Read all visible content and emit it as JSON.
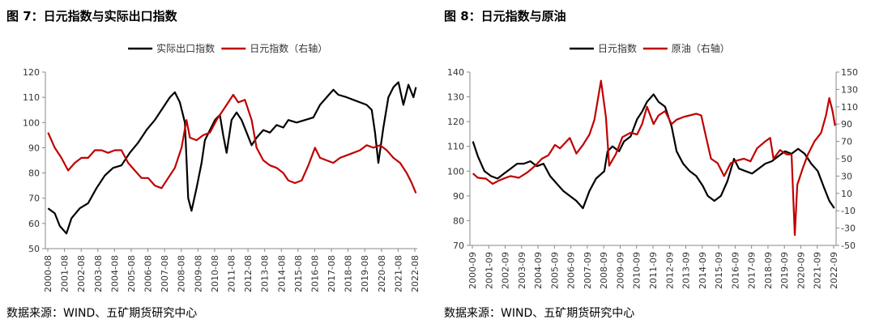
{
  "charts": [
    {
      "title": "图 7：日元指数与实际出口指数",
      "source": "数据来源：WIND、五矿期货研究中心"
    },
    {
      "title": "图 8：日元指数与原油",
      "source": "数据来源：WIND、五矿期货研究中心"
    }
  ],
  "chart_data": [
    {
      "type": "line",
      "title": "图 7：日元指数与实际出口指数",
      "legend_position": "top-center",
      "grid": false,
      "x_ticks": [
        "2000-08",
        "2001-08",
        "2002-08",
        "2003-08",
        "2004-08",
        "2005-08",
        "2006-08",
        "2007-08",
        "2008-08",
        "2009-08",
        "2010-08",
        "2011-08",
        "2012-08",
        "2013-08",
        "2014-08",
        "2015-08",
        "2016-08",
        "2017-08",
        "2018-08",
        "2019-08",
        "2020-08",
        "2021-08",
        "2022-08"
      ],
      "y_left": {
        "min": 50,
        "max": 120,
        "ticks": [
          50,
          60,
          70,
          80,
          90,
          100,
          110,
          120
        ]
      },
      "y_right": null,
      "series": [
        {
          "name": "实际出口指数",
          "axis": "left",
          "color": "#000000",
          "points": [
            [
              2000.6,
              66
            ],
            [
              2001.0,
              64
            ],
            [
              2001.3,
              59
            ],
            [
              2001.7,
              56
            ],
            [
              2002.0,
              62
            ],
            [
              2002.5,
              66
            ],
            [
              2003.0,
              68
            ],
            [
              2003.5,
              74
            ],
            [
              2004.0,
              79
            ],
            [
              2004.5,
              82
            ],
            [
              2005.0,
              83
            ],
            [
              2005.5,
              88
            ],
            [
              2006.0,
              92
            ],
            [
              2006.5,
              97
            ],
            [
              2007.0,
              101
            ],
            [
              2007.5,
              106
            ],
            [
              2007.9,
              110
            ],
            [
              2008.2,
              112
            ],
            [
              2008.5,
              108
            ],
            [
              2008.8,
              100
            ],
            [
              2009.0,
              70
            ],
            [
              2009.2,
              65
            ],
            [
              2009.5,
              74
            ],
            [
              2009.8,
              84
            ],
            [
              2010.0,
              93
            ],
            [
              2010.3,
              97
            ],
            [
              2010.6,
              101
            ],
            [
              2010.9,
              103
            ],
            [
              2011.1,
              95
            ],
            [
              2011.3,
              88
            ],
            [
              2011.6,
              101
            ],
            [
              2011.9,
              104
            ],
            [
              2012.2,
              101
            ],
            [
              2012.5,
              96
            ],
            [
              2012.8,
              91
            ],
            [
              2013.1,
              94
            ],
            [
              2013.5,
              97
            ],
            [
              2013.9,
              96
            ],
            [
              2014.3,
              99
            ],
            [
              2014.7,
              98
            ],
            [
              2015.0,
              101
            ],
            [
              2015.5,
              100
            ],
            [
              2016.0,
              101
            ],
            [
              2016.5,
              102
            ],
            [
              2016.9,
              107
            ],
            [
              2017.3,
              110
            ],
            [
              2017.7,
              113
            ],
            [
              2018.0,
              111
            ],
            [
              2018.5,
              110
            ],
            [
              2018.9,
              109
            ],
            [
              2019.3,
              108
            ],
            [
              2019.7,
              107
            ],
            [
              2020.0,
              105
            ],
            [
              2020.2,
              96
            ],
            [
              2020.4,
              84
            ],
            [
              2020.7,
              98
            ],
            [
              2021.0,
              110
            ],
            [
              2021.3,
              114
            ],
            [
              2021.6,
              116
            ],
            [
              2021.9,
              107
            ],
            [
              2022.2,
              115
            ],
            [
              2022.5,
              110
            ],
            [
              2022.65,
              114
            ]
          ]
        },
        {
          "name": "日元指数（右轴）",
          "axis": "left",
          "color": "#c00000",
          "points": [
            [
              2000.6,
              96
            ],
            [
              2001.0,
              90
            ],
            [
              2001.4,
              86
            ],
            [
              2001.8,
              81
            ],
            [
              2002.2,
              84
            ],
            [
              2002.6,
              86
            ],
            [
              2003.0,
              86
            ],
            [
              2003.4,
              89
            ],
            [
              2003.8,
              89
            ],
            [
              2004.2,
              88
            ],
            [
              2004.6,
              89
            ],
            [
              2005.0,
              89
            ],
            [
              2005.4,
              84
            ],
            [
              2005.8,
              81
            ],
            [
              2006.2,
              78
            ],
            [
              2006.6,
              78
            ],
            [
              2007.0,
              75
            ],
            [
              2007.4,
              74
            ],
            [
              2007.8,
              78
            ],
            [
              2008.2,
              82
            ],
            [
              2008.6,
              90
            ],
            [
              2008.9,
              101
            ],
            [
              2009.1,
              94
            ],
            [
              2009.5,
              93
            ],
            [
              2009.9,
              95
            ],
            [
              2010.3,
              96
            ],
            [
              2010.7,
              101
            ],
            [
              2011.0,
              104
            ],
            [
              2011.3,
              107
            ],
            [
              2011.7,
              111
            ],
            [
              2012.0,
              108
            ],
            [
              2012.4,
              109
            ],
            [
              2012.8,
              101
            ],
            [
              2013.1,
              90
            ],
            [
              2013.5,
              85
            ],
            [
              2013.9,
              83
            ],
            [
              2014.3,
              82
            ],
            [
              2014.7,
              80
            ],
            [
              2015.0,
              77
            ],
            [
              2015.4,
              76
            ],
            [
              2015.8,
              77
            ],
            [
              2016.2,
              83
            ],
            [
              2016.6,
              90
            ],
            [
              2016.9,
              86
            ],
            [
              2017.3,
              85
            ],
            [
              2017.7,
              84
            ],
            [
              2018.1,
              86
            ],
            [
              2018.5,
              87
            ],
            [
              2018.9,
              88
            ],
            [
              2019.3,
              89
            ],
            [
              2019.7,
              91
            ],
            [
              2020.1,
              90
            ],
            [
              2020.5,
              91
            ],
            [
              2020.9,
              89
            ],
            [
              2021.3,
              86
            ],
            [
              2021.7,
              84
            ],
            [
              2022.1,
              80
            ],
            [
              2022.4,
              76
            ],
            [
              2022.65,
              72
            ]
          ]
        }
      ]
    },
    {
      "type": "line",
      "title": "图 8：日元指数与原油",
      "legend_position": "top-center",
      "grid": false,
      "x_ticks": [
        "2000-09",
        "2001-09",
        "2002-09",
        "2003-09",
        "2004-09",
        "2005-09",
        "2006-09",
        "2007-09",
        "2008-09",
        "2009-09",
        "2010-09",
        "2011-09",
        "2012-09",
        "2013-09",
        "2014-09",
        "2015-09",
        "2016-09",
        "2017-09",
        "2018-09",
        "2019-09",
        "2020-09",
        "2021-09",
        "2022-09"
      ],
      "y_left": {
        "min": 70,
        "max": 140,
        "ticks": [
          70,
          80,
          90,
          100,
          110,
          120,
          130,
          140
        ]
      },
      "y_right": {
        "min": -50,
        "max": 150,
        "ticks": [
          -50,
          -30,
          -10,
          10,
          30,
          50,
          70,
          90,
          110,
          130,
          150
        ]
      },
      "series": [
        {
          "name": "日元指数",
          "axis": "left",
          "color": "#000000",
          "points": [
            [
              2000.7,
              112
            ],
            [
              2001.0,
              106
            ],
            [
              2001.4,
              100
            ],
            [
              2001.8,
              98
            ],
            [
              2002.2,
              97
            ],
            [
              2002.6,
              99
            ],
            [
              2003.0,
              101
            ],
            [
              2003.4,
              103
            ],
            [
              2003.8,
              103
            ],
            [
              2004.2,
              104
            ],
            [
              2004.6,
              102
            ],
            [
              2005.0,
              103
            ],
            [
              2005.4,
              98
            ],
            [
              2005.8,
              95
            ],
            [
              2006.2,
              92
            ],
            [
              2006.6,
              90
            ],
            [
              2007.0,
              88
            ],
            [
              2007.4,
              85
            ],
            [
              2007.8,
              92
            ],
            [
              2008.2,
              97
            ],
            [
              2008.7,
              100
            ],
            [
              2008.9,
              108
            ],
            [
              2009.2,
              110
            ],
            [
              2009.6,
              108
            ],
            [
              2009.9,
              112
            ],
            [
              2010.3,
              114
            ],
            [
              2010.7,
              121
            ],
            [
              2011.0,
              124
            ],
            [
              2011.3,
              128
            ],
            [
              2011.7,
              131
            ],
            [
              2012.0,
              128
            ],
            [
              2012.4,
              126
            ],
            [
              2012.8,
              118
            ],
            [
              2013.1,
              108
            ],
            [
              2013.5,
              103
            ],
            [
              2013.9,
              100
            ],
            [
              2014.3,
              98
            ],
            [
              2014.7,
              94
            ],
            [
              2015.0,
              90
            ],
            [
              2015.4,
              88
            ],
            [
              2015.8,
              90
            ],
            [
              2016.2,
              96
            ],
            [
              2016.6,
              105
            ],
            [
              2016.9,
              101
            ],
            [
              2017.3,
              100
            ],
            [
              2017.7,
              99
            ],
            [
              2018.1,
              101
            ],
            [
              2018.5,
              103
            ],
            [
              2018.9,
              104
            ],
            [
              2019.3,
              106
            ],
            [
              2019.7,
              108
            ],
            [
              2020.1,
              107
            ],
            [
              2020.5,
              109
            ],
            [
              2020.9,
              107
            ],
            [
              2021.3,
              103
            ],
            [
              2021.7,
              100
            ],
            [
              2022.1,
              93
            ],
            [
              2022.4,
              88
            ],
            [
              2022.7,
              85
            ]
          ]
        },
        {
          "name": "原油（右轴）",
          "axis": "right",
          "color": "#c00000",
          "points": [
            [
              2000.7,
              33
            ],
            [
              2001.0,
              28
            ],
            [
              2001.5,
              27
            ],
            [
              2001.9,
              21
            ],
            [
              2002.3,
              25
            ],
            [
              2002.7,
              28
            ],
            [
              2003.0,
              30
            ],
            [
              2003.5,
              28
            ],
            [
              2004.0,
              34
            ],
            [
              2004.5,
              42
            ],
            [
              2004.9,
              50
            ],
            [
              2005.3,
              54
            ],
            [
              2005.7,
              66
            ],
            [
              2006.0,
              62
            ],
            [
              2006.6,
              74
            ],
            [
              2007.0,
              56
            ],
            [
              2007.4,
              66
            ],
            [
              2007.8,
              78
            ],
            [
              2008.1,
              95
            ],
            [
              2008.5,
              140
            ],
            [
              2008.8,
              98
            ],
            [
              2009.0,
              42
            ],
            [
              2009.4,
              55
            ],
            [
              2009.8,
              75
            ],
            [
              2010.3,
              80
            ],
            [
              2010.7,
              78
            ],
            [
              2011.0,
              90
            ],
            [
              2011.3,
              110
            ],
            [
              2011.7,
              90
            ],
            [
              2012.0,
              100
            ],
            [
              2012.4,
              105
            ],
            [
              2012.8,
              90
            ],
            [
              2013.1,
              95
            ],
            [
              2013.5,
              98
            ],
            [
              2013.9,
              100
            ],
            [
              2014.3,
              102
            ],
            [
              2014.6,
              100
            ],
            [
              2014.9,
              75
            ],
            [
              2015.2,
              50
            ],
            [
              2015.6,
              45
            ],
            [
              2016.0,
              30
            ],
            [
              2016.4,
              45
            ],
            [
              2016.8,
              48
            ],
            [
              2017.2,
              50
            ],
            [
              2017.6,
              47
            ],
            [
              2018.0,
              62
            ],
            [
              2018.5,
              70
            ],
            [
              2018.8,
              74
            ],
            [
              2019.0,
              50
            ],
            [
              2019.4,
              60
            ],
            [
              2019.8,
              55
            ],
            [
              2020.1,
              55
            ],
            [
              2020.3,
              -38
            ],
            [
              2020.45,
              20
            ],
            [
              2020.8,
              40
            ],
            [
              2021.1,
              55
            ],
            [
              2021.5,
              70
            ],
            [
              2021.9,
              80
            ],
            [
              2022.2,
              100
            ],
            [
              2022.4,
              120
            ],
            [
              2022.6,
              105
            ],
            [
              2022.75,
              88
            ]
          ]
        }
      ]
    }
  ]
}
